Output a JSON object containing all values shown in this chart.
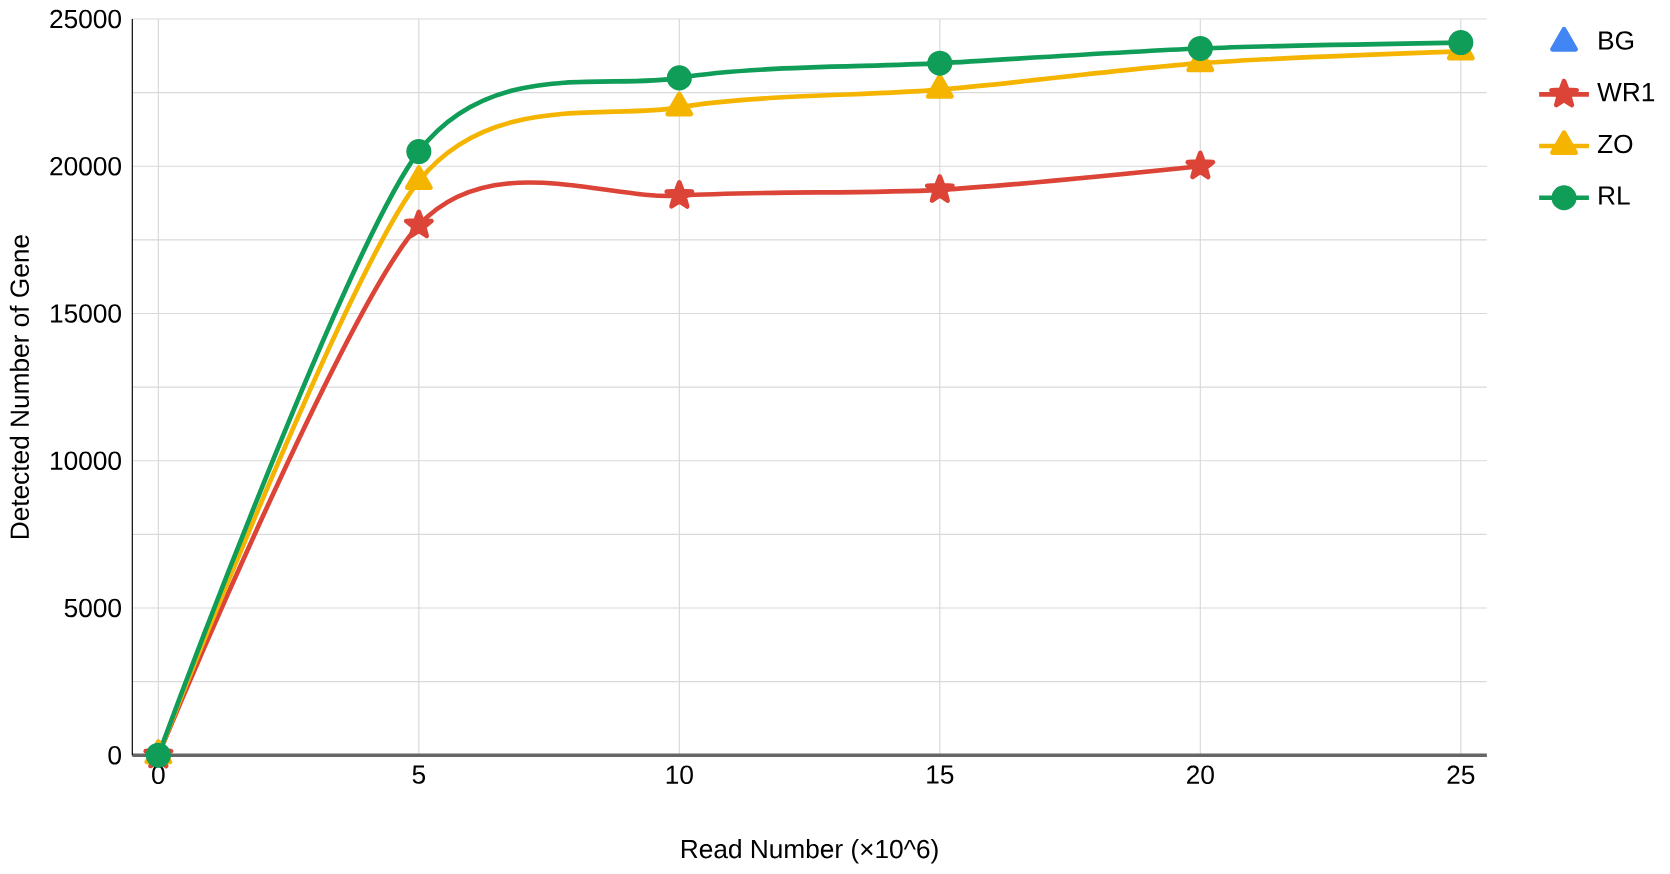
{
  "chart_data": {
    "type": "line",
    "xlabel": "Read Number (×10^6)",
    "ylabel": "Detected Number of Gene",
    "x": [
      0,
      5,
      10,
      15,
      20,
      25
    ],
    "series": [
      {
        "name": "BG",
        "color": "#4285f4",
        "marker": "triangle",
        "values": [
          null,
          null,
          null,
          null,
          null,
          null
        ]
      },
      {
        "name": "WR1",
        "color": "#db4437",
        "marker": "star",
        "values": [
          0,
          18000,
          19000,
          19200,
          20000,
          null
        ]
      },
      {
        "name": "ZO",
        "color": "#f4b400",
        "marker": "triangle",
        "values": [
          0,
          19500,
          22000,
          22600,
          23500,
          23900
        ]
      },
      {
        "name": "RL",
        "color": "#0f9d58",
        "marker": "circle",
        "values": [
          0,
          20500,
          23000,
          23500,
          24000,
          24200
        ]
      }
    ],
    "xlim": [
      -0.5,
      25.5
    ],
    "xticks": [
      0,
      5,
      10,
      15,
      20,
      25
    ],
    "ylim": [
      0,
      25000
    ],
    "yticks": [
      0,
      {
        "value": 2500,
        "label": null
      },
      5000,
      {
        "value": 7500,
        "label": null
      },
      10000,
      {
        "value": 12500,
        "label": null
      },
      15000,
      {
        "value": 17500,
        "label": null
      },
      20000,
      {
        "value": 22500,
        "label": null
      },
      25000
    ],
    "grid": true,
    "legend": "top right",
    "line_style": "solid"
  }
}
